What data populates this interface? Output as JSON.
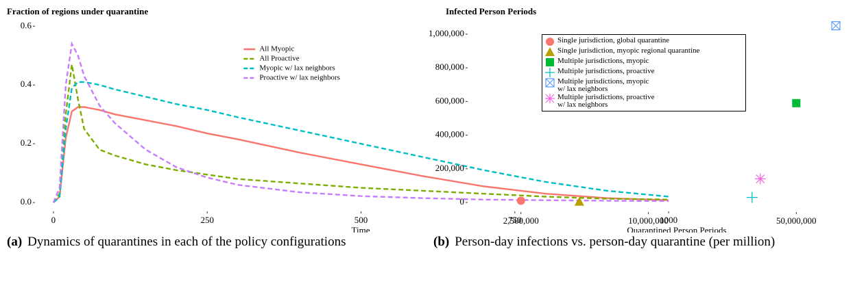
{
  "chart_data": [
    {
      "type": "line",
      "title": "Fraction of regions under quarantine",
      "x_label": "Time",
      "x": [
        0,
        10,
        20,
        30,
        40,
        50,
        75,
        100,
        150,
        200,
        250,
        300,
        400,
        500,
        600,
        700,
        800,
        900,
        1000
      ],
      "series": [
        {
          "name": "All Myopic",
          "color": "#f8766d",
          "dash": "solid",
          "values": [
            0,
            0.02,
            0.22,
            0.31,
            0.325,
            0.325,
            0.315,
            0.3,
            0.28,
            0.26,
            0.235,
            0.215,
            0.17,
            0.13,
            0.09,
            0.055,
            0.03,
            0.015,
            0.008
          ]
        },
        {
          "name": "All Proactive",
          "color": "#7cae00",
          "dash": "dashed",
          "values": [
            0,
            0.03,
            0.3,
            0.47,
            0.35,
            0.25,
            0.18,
            0.16,
            0.13,
            0.11,
            0.095,
            0.08,
            0.065,
            0.05,
            0.04,
            0.03,
            0.02,
            0.013,
            0.01
          ]
        },
        {
          "name": "Myopic w/ lax neighbors",
          "color": "#00bfc4",
          "dash": "dashed",
          "values": [
            0,
            0.02,
            0.25,
            0.39,
            0.41,
            0.41,
            0.4,
            0.385,
            0.36,
            0.335,
            0.315,
            0.29,
            0.245,
            0.2,
            0.155,
            0.11,
            0.07,
            0.04,
            0.02
          ]
        },
        {
          "name": "Proactive w/ lax neighbors",
          "color": "#c77cff",
          "dash": "dashed",
          "values": [
            0,
            0.05,
            0.4,
            0.54,
            0.5,
            0.43,
            0.33,
            0.27,
            0.18,
            0.12,
            0.085,
            0.06,
            0.035,
            0.022,
            0.015,
            0.01,
            0.008,
            0.006,
            0.005
          ]
        }
      ],
      "xlim": [
        -30,
        1030
      ],
      "xticks": [
        0,
        250,
        500,
        750,
        1000
      ],
      "ylim": [
        -0.03,
        0.61
      ],
      "yticks": [
        {
          "value": 0,
          "label": "0.0"
        },
        0.2,
        0.4,
        0.6
      ],
      "grid": false,
      "legend": "top-right",
      "caption": {
        "label": "(a)",
        "text": "Dynamics of quarantines in each of the policy configurations"
      }
    },
    {
      "type": "scatter",
      "title": "Infected Person Periods",
      "x_label": "Quarantined Person Periods",
      "xscale": "log",
      "series": [
        {
          "name": "Single jurisdiction, global quarantine",
          "color": "#f8766d",
          "marker": "circle",
          "x": [
            2500000
          ],
          "values": [
            10000
          ]
        },
        {
          "name": "Single jurisdiction, myopic regional quarantine",
          "color": "#b79f00",
          "marker": "triangle",
          "x": [
            4720000
          ],
          "values": [
            5000
          ]
        },
        {
          "name": "Multiple jurisdictions, myopic",
          "color": "#00ba38",
          "marker": "square",
          "x": [
            50000000
          ],
          "values": [
            590000
          ]
        },
        {
          "name": "Multiple jurisdictions, proactive",
          "color": "#00bfc4",
          "marker": "plus",
          "x": [
            30900000
          ],
          "values": [
            30000
          ]
        },
        {
          "name": "Multiple jurisdictions, myopic\n w/ lax neighbors",
          "color": "#619cff",
          "marker": "boxx",
          "x": [
            76900000
          ],
          "values": [
            1050000
          ]
        },
        {
          "name": "Multiple jurisdictions, proactive\n w/ lax neighbors",
          "color": "#f564e3",
          "marker": "asterisk",
          "x": [
            33800000
          ],
          "values": [
            140000
          ]
        }
      ],
      "xlim": [
        1400000,
        86000000
      ],
      "xticks": [
        {
          "value": 2500000,
          "label": "2,500,000"
        },
        {
          "value": 10000000,
          "label": "10,000,000"
        },
        {
          "value": 50000000,
          "label": "50,000,000"
        }
      ],
      "ylim": [
        -57000,
        1081000
      ],
      "yticks": [
        0,
        {
          "value": 200000,
          "label": "200,000"
        },
        {
          "value": 400000,
          "label": "400,000"
        },
        {
          "value": 600000,
          "label": "600,000"
        },
        {
          "value": 800000,
          "label": "800,000"
        },
        {
          "value": 1000000,
          "label": "1,000,000"
        }
      ],
      "grid": false,
      "legend": "top-left",
      "caption": {
        "label": "(b)",
        "text": "Person-day infections vs. person-day quarantine (per million)"
      }
    }
  ]
}
